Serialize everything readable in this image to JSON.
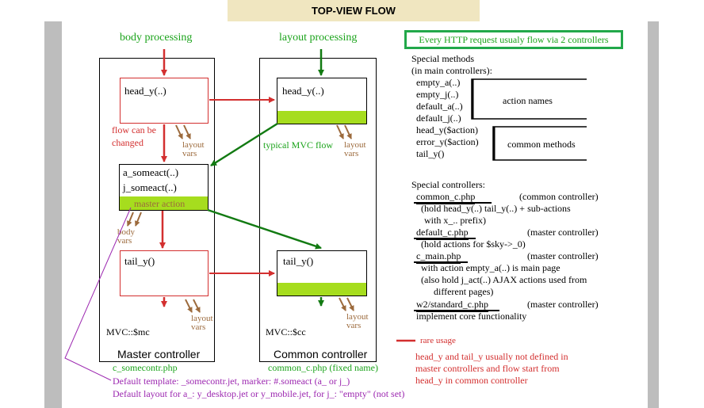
{
  "title": "TOP-VIEW FLOW",
  "labels": {
    "body_processing": "body processing",
    "layout_processing": "layout processing",
    "http_note": "Every HTTP request usualy flow via 2 controllers"
  },
  "master": {
    "head": "head_y(..)",
    "flow_note_1": "flow can be",
    "flow_note_2": "changed",
    "layout_vars_1a": "layout",
    "layout_vars_1b": "vars",
    "act1": "a_someact(..)",
    "act2": "j_someact(..)",
    "master_action": "master action",
    "body_vars_a": "body",
    "body_vars_b": "vars",
    "tail": "tail_y()",
    "layout_vars_2a": "layout",
    "layout_vars_2b": "vars",
    "mvc": "MVC::$mc",
    "name": "Master controller",
    "file": "c_somecontr.php"
  },
  "common": {
    "head": "head_y(..)",
    "mvc_flow": "typical MVC flow",
    "layout_vars_1a": "layout",
    "layout_vars_1b": "vars",
    "tail": "tail_y()",
    "layout_vars_2a": "layout",
    "layout_vars_2b": "vars",
    "mvc": "MVC::$cc",
    "name": "Common controller",
    "file": "common_c.php  (fixed name)"
  },
  "special_methods": {
    "heading1": "Special  methods",
    "heading2": "(in main controllers):",
    "items": [
      "empty_a(..)",
      "empty_j(..)",
      "default_a(..)",
      "default_j(..)",
      "head_y($action)",
      "error_y($action)",
      "tail_y()"
    ],
    "action_names": "action names",
    "common_methods": "common methods"
  },
  "special_controllers": {
    "heading": "Special controllers:",
    "common_c": "common_c.php",
    "common_c_type": "(common controller)",
    "common_c_desc1": "(hold head_y(..) tail_y(..) + sub-actions",
    "common_c_desc2": "with x_.. prefix)",
    "default_c": "default_c.php",
    "default_c_type": "(master controller)",
    "default_c_desc": "(hold actions for $sky->_0)",
    "c_main": "c_main.php",
    "c_main_type": "(master controller)",
    "c_main_desc1": "with action empty_a(..) is main page",
    "c_main_desc2": "(also hold j_act(..) AJAX actions used from",
    "c_main_desc3": "different pages)",
    "w2": "w2/standard_c.php",
    "w2_type": "(master controller)",
    "w2_desc": "implement core functionality"
  },
  "legend": {
    "rare_usage": "rare usage",
    "note1": "head_y and tail_y usually not defined in",
    "note2": "master controllers and flow start from",
    "note3": "head_y in common controller"
  },
  "footer": {
    "line1": "Default template: _somecontr.jet, marker: #.someact (a_ or j_)",
    "line2": "Default layout for a_: y_desktop.jet or y_mobile.jet, for j_: \"empty\" (not set)"
  },
  "colors": {
    "red": "#d32f2f",
    "green": "#1aa31a",
    "lime": "#a6dd1e",
    "brown": "#9c6a3c",
    "purple": "#9c27b0",
    "frame": "#bdbdbd"
  }
}
